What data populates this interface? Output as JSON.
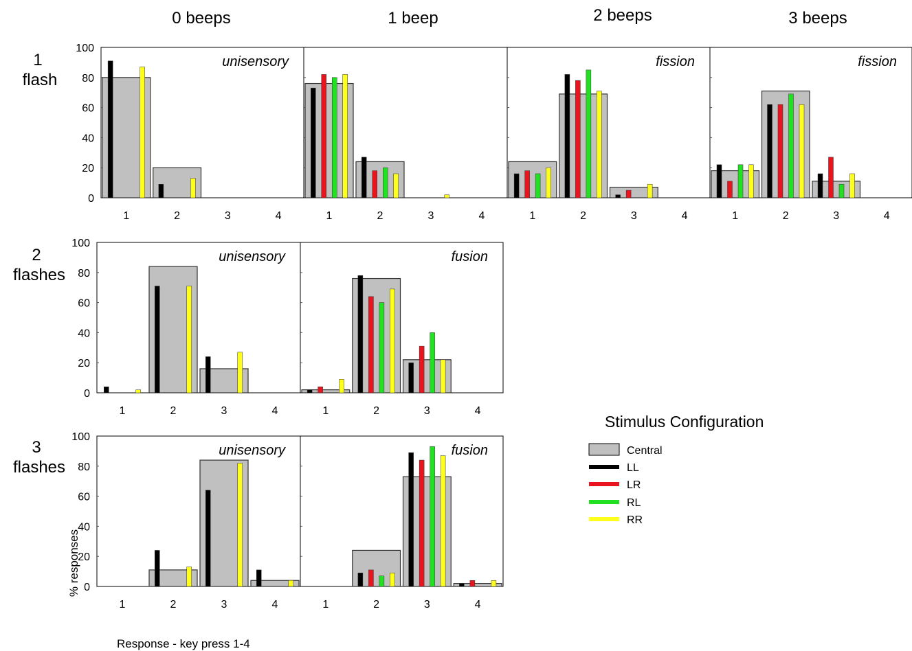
{
  "column_labels": [
    "0 beeps",
    "1 beep",
    "2 beeps",
    "3 beeps"
  ],
  "row_labels": [
    [
      "1",
      "flash"
    ],
    [
      "2",
      "flashes"
    ],
    [
      "3",
      "flashes"
    ]
  ],
  "y_axis_label": "% responses",
  "x_axis_label": "Response - key press 1-4",
  "legend": {
    "title": "Stimulus Configuration",
    "entries": [
      {
        "label": "Central",
        "color": "#c0c0c0"
      },
      {
        "label": "LL",
        "color": "#000000"
      },
      {
        "label": "LR",
        "color": "#e8141e"
      },
      {
        "label": "RL",
        "color": "#22e022"
      },
      {
        "label": "RR",
        "color": "#ffff1e"
      }
    ]
  },
  "chart_data": [
    {
      "type": "bar",
      "flashes": 1,
      "beeps": 0,
      "annotation": "unisensory",
      "categories": [
        "1",
        "2",
        "3",
        "4"
      ],
      "ylim": [
        0,
        100
      ],
      "yticks": [
        0,
        20,
        40,
        60,
        80,
        100
      ],
      "series": [
        {
          "name": "Central",
          "values": [
            80,
            20,
            0,
            0
          ]
        },
        {
          "name": "LL",
          "values": [
            91,
            9,
            0,
            0
          ]
        },
        {
          "name": "RR",
          "values": [
            87,
            13,
            0,
            0
          ]
        }
      ]
    },
    {
      "type": "bar",
      "flashes": 1,
      "beeps": 1,
      "annotation": "",
      "categories": [
        "1",
        "2",
        "3",
        "4"
      ],
      "ylim": [
        0,
        100
      ],
      "series": [
        {
          "name": "Central",
          "values": [
            76,
            24,
            0,
            0
          ]
        },
        {
          "name": "LL",
          "values": [
            73,
            27,
            0,
            0
          ]
        },
        {
          "name": "LR",
          "values": [
            82,
            18,
            0,
            0
          ]
        },
        {
          "name": "RL",
          "values": [
            80,
            20,
            0,
            0
          ]
        },
        {
          "name": "RR",
          "values": [
            82,
            16,
            2,
            0
          ]
        }
      ]
    },
    {
      "type": "bar",
      "flashes": 1,
      "beeps": 2,
      "annotation": "fission",
      "categories": [
        "1",
        "2",
        "3",
        "4"
      ],
      "ylim": [
        0,
        100
      ],
      "series": [
        {
          "name": "Central",
          "values": [
            24,
            69,
            7,
            0
          ]
        },
        {
          "name": "LL",
          "values": [
            16,
            82,
            2,
            0
          ]
        },
        {
          "name": "LR",
          "values": [
            18,
            78,
            5,
            0
          ]
        },
        {
          "name": "RL",
          "values": [
            16,
            85,
            0,
            0
          ]
        },
        {
          "name": "RR",
          "values": [
            20,
            71,
            9,
            0
          ]
        }
      ]
    },
    {
      "type": "bar",
      "flashes": 1,
      "beeps": 3,
      "annotation": "fission",
      "categories": [
        "1",
        "2",
        "3",
        "4"
      ],
      "ylim": [
        0,
        100
      ],
      "series": [
        {
          "name": "Central",
          "values": [
            18,
            71,
            11,
            0
          ]
        },
        {
          "name": "LL",
          "values": [
            22,
            62,
            16,
            0
          ]
        },
        {
          "name": "LR",
          "values": [
            11,
            62,
            27,
            0
          ]
        },
        {
          "name": "RL",
          "values": [
            22,
            69,
            9,
            0
          ]
        },
        {
          "name": "RR",
          "values": [
            22,
            62,
            16,
            0
          ]
        }
      ]
    },
    {
      "type": "bar",
      "flashes": 2,
      "beeps": 0,
      "annotation": "unisensory",
      "categories": [
        "1",
        "2",
        "3",
        "4"
      ],
      "ylim": [
        0,
        100
      ],
      "yticks": [
        0,
        20,
        40,
        60,
        80,
        100
      ],
      "series": [
        {
          "name": "Central",
          "values": [
            0,
            84,
            16,
            0
          ]
        },
        {
          "name": "LL",
          "values": [
            4,
            71,
            24,
            0
          ]
        },
        {
          "name": "RR",
          "values": [
            2,
            71,
            27,
            0
          ]
        }
      ]
    },
    {
      "type": "bar",
      "flashes": 2,
      "beeps": 1,
      "annotation": "fusion",
      "categories": [
        "1",
        "2",
        "3",
        "4"
      ],
      "ylim": [
        0,
        100
      ],
      "series": [
        {
          "name": "Central",
          "values": [
            2,
            76,
            22,
            0
          ]
        },
        {
          "name": "LL",
          "values": [
            2,
            78,
            20,
            0
          ]
        },
        {
          "name": "LR",
          "values": [
            4,
            64,
            31,
            0
          ]
        },
        {
          "name": "RL",
          "values": [
            0,
            60,
            40,
            0
          ]
        },
        {
          "name": "RR",
          "values": [
            9,
            69,
            22,
            0
          ]
        }
      ]
    },
    {
      "type": "bar",
      "flashes": 3,
      "beeps": 0,
      "annotation": "unisensory",
      "categories": [
        "1",
        "2",
        "3",
        "4"
      ],
      "ylim": [
        0,
        100
      ],
      "yticks": [
        0,
        20,
        40,
        60,
        80,
        100
      ],
      "series": [
        {
          "name": "Central",
          "values": [
            0,
            11,
            84,
            4
          ]
        },
        {
          "name": "LL",
          "values": [
            0,
            24,
            64,
            11
          ]
        },
        {
          "name": "RR",
          "values": [
            0,
            13,
            82,
            4
          ]
        }
      ]
    },
    {
      "type": "bar",
      "flashes": 3,
      "beeps": 1,
      "annotation": "fusion",
      "categories": [
        "1",
        "2",
        "3",
        "4"
      ],
      "ylim": [
        0,
        100
      ],
      "series": [
        {
          "name": "Central",
          "values": [
            0,
            24,
            73,
            2
          ]
        },
        {
          "name": "LL",
          "values": [
            0,
            9,
            89,
            2
          ]
        },
        {
          "name": "LR",
          "values": [
            0,
            11,
            84,
            4
          ]
        },
        {
          "name": "RL",
          "values": [
            0,
            7,
            93,
            0
          ]
        },
        {
          "name": "RR",
          "values": [
            0,
            9,
            87,
            4
          ]
        }
      ]
    }
  ]
}
